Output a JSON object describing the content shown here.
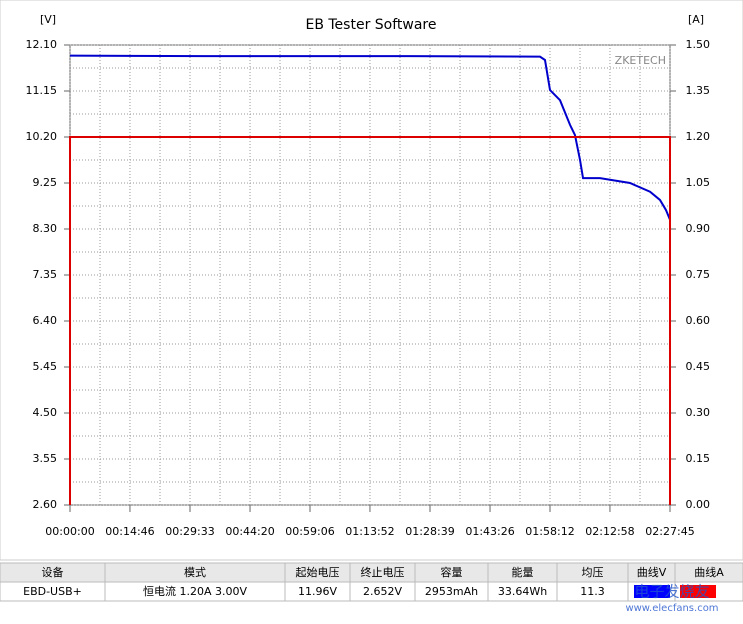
{
  "chart_data": {
    "type": "line",
    "title": "EB Tester Software",
    "ylabel": "[V]",
    "y2label": "[A]",
    "watermark": "ZKETECH",
    "xlim": [
      0,
      8865
    ],
    "xticks": [
      {
        "value": 0,
        "label": "00:00:00"
      },
      {
        "value": 886,
        "label": "00:14:46"
      },
      {
        "value": 1773,
        "label": "00:29:33"
      },
      {
        "value": 2660,
        "label": "00:44:20"
      },
      {
        "value": 3546,
        "label": "00:59:06"
      },
      {
        "value": 4432,
        "label": "01:13:52"
      },
      {
        "value": 5319,
        "label": "01:28:39"
      },
      {
        "value": 6206,
        "label": "01:43:26"
      },
      {
        "value": 7092,
        "label": "01:58:12"
      },
      {
        "value": 7978,
        "label": "02:12:58"
      },
      {
        "value": 8865,
        "label": "02:27:45"
      }
    ],
    "ylim": [
      2.6,
      12.1
    ],
    "yticks": [
      {
        "value": 2.6,
        "label": "2.60"
      },
      3.55,
      {
        "value": 4.5,
        "label": "4.50"
      },
      5.45,
      {
        "value": 6.4,
        "label": "6.40"
      },
      7.35,
      {
        "value": 8.3,
        "label": "8.30"
      },
      9.25,
      {
        "value": 10.2,
        "label": "10.20"
      },
      11.15,
      {
        "value": 12.1,
        "label": "12.10"
      }
    ],
    "y2lim": [
      0,
      1.5
    ],
    "y2ticks": [
      {
        "value": 0,
        "label": "0.00"
      },
      0.15,
      {
        "value": 0.3,
        "label": "0.30"
      },
      0.45,
      {
        "value": 0.6,
        "label": "0.60"
      },
      0.75,
      {
        "value": 0.9,
        "label": "0.90"
      },
      1.05,
      {
        "value": 1.2,
        "label": "1.20"
      },
      1.35,
      {
        "value": 1.5,
        "label": "1.50"
      }
    ],
    "grid": true,
    "series": [
      {
        "color": "#0000cc",
        "x": [
          0,
          2000,
          5000,
          6900,
          6944,
          7018,
          7092,
          7240,
          7388,
          7461,
          7535,
          7580,
          7831,
          8274,
          8570,
          8717,
          8806,
          8865,
          8865
        ],
        "values": [
          11.88,
          11.87,
          11.87,
          11.86,
          11.86,
          11.79,
          11.17,
          10.96,
          10.45,
          10.24,
          9.73,
          9.35,
          9.35,
          9.25,
          9.07,
          8.9,
          8.69,
          8.49,
          2.65
        ]
      },
      {
        "color": "#dd0000",
        "axis": "y2",
        "x": [
          0,
          0,
          8865,
          8865
        ],
        "values": [
          0,
          1.2,
          1.2,
          0
        ]
      }
    ]
  },
  "table": {
    "headers": [
      "设备",
      "模式",
      "起始电压",
      "终止电压",
      "容量",
      "能量",
      "均压",
      "曲线V",
      "曲线A"
    ],
    "rows": [
      [
        "EBD-USB+",
        "恒电流  1.20A  3.00V",
        "11.96V",
        "2.652V",
        "2953mAh",
        "33.64Wh",
        "11.3"
      ]
    ]
  },
  "site_watermark": {
    "name": "电子发烧友",
    "url": "www.elecfans.com"
  }
}
